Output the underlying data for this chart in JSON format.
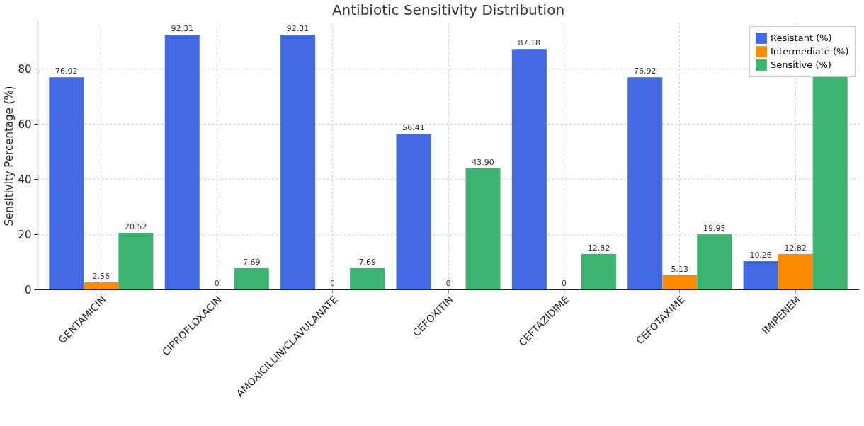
{
  "chart_data": {
    "type": "bar",
    "title": "Antibiotic Sensitivity Distribution",
    "ylabel": "Sensitivity Percentage (%)",
    "categories": [
      "GENTAMICIN",
      "CIPROFLOXACIN",
      "AMOXICILLIN/CLAVULANATE",
      "CEFOXITIN",
      "CEFTAZIDIME",
      "CEFOTAXIME",
      "IMIPENEM"
    ],
    "series": [
      {
        "name": "Resistant (%)",
        "color": "#4169e1",
        "values": [
          76.92,
          92.31,
          92.31,
          56.41,
          87.18,
          76.92,
          10.26
        ],
        "value_labels": [
          "76.92",
          "92.31",
          "92.31",
          "56.41",
          "87.18",
          "76.92",
          "10.26"
        ]
      },
      {
        "name": "Intermediate (%)",
        "color": "#ff8c00",
        "values": [
          2.56,
          0,
          0,
          0,
          0,
          5.13,
          12.82
        ],
        "value_labels": [
          "2.56",
          "0",
          "0",
          "0",
          "0",
          "5.13",
          "12.82"
        ]
      },
      {
        "name": "Sensitive (%)",
        "color": "#3cb371",
        "values": [
          20.52,
          7.69,
          7.69,
          43.9,
          12.82,
          19.95,
          77
        ],
        "value_labels": [
          "20.52",
          "7.69",
          "7.69",
          "43.90",
          "12.82",
          "19.95",
          null
        ]
      }
    ],
    "ylim": [
      0,
      97
    ],
    "yticks": [
      0,
      20,
      40,
      60,
      80
    ],
    "grid": true,
    "legend": "top right"
  }
}
